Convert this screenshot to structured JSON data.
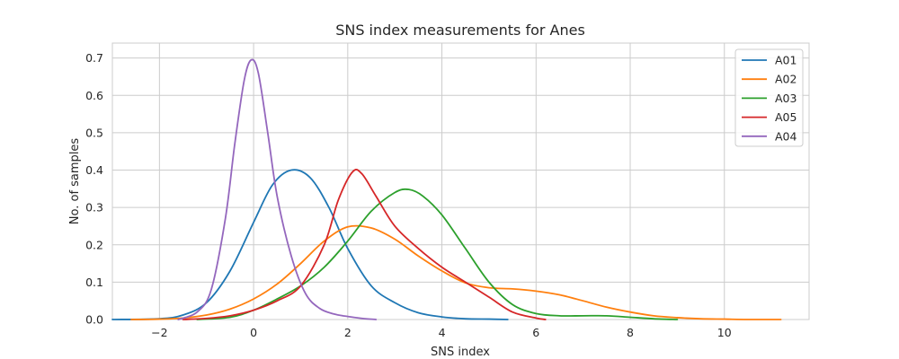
{
  "chart_data": {
    "type": "line",
    "title": "SNS index measurements for Anes",
    "xlabel": "SNS index",
    "ylabel": "No. of samples",
    "xlim": [
      -3.0,
      11.8
    ],
    "ylim": [
      0.0,
      0.74
    ],
    "xticks": [
      -2,
      0,
      2,
      4,
      6,
      8,
      10
    ],
    "xtick_labels": [
      "−2",
      "0",
      "2",
      "4",
      "6",
      "8",
      "10"
    ],
    "yticks": [
      0.0,
      0.1,
      0.2,
      0.3,
      0.4,
      0.5,
      0.6,
      0.7
    ],
    "ytick_labels": [
      "0.0",
      "0.1",
      "0.2",
      "0.3",
      "0.4",
      "0.5",
      "0.6",
      "0.7"
    ],
    "grid": true,
    "legend_position": "top-right",
    "series": [
      {
        "name": "A01",
        "color": "#1f77b4",
        "x": [
          -3.0,
          -2.0,
          -1.5,
          -1.0,
          -0.5,
          0.0,
          0.4,
          0.8,
          1.2,
          1.6,
          2.0,
          2.5,
          3.0,
          3.5,
          4.0,
          4.5,
          5.0,
          5.4
        ],
        "y": [
          0.0,
          0.002,
          0.012,
          0.045,
          0.13,
          0.26,
          0.36,
          0.4,
          0.38,
          0.3,
          0.19,
          0.09,
          0.045,
          0.018,
          0.007,
          0.002,
          0.001,
          0.0
        ]
      },
      {
        "name": "A02",
        "color": "#ff7f0e",
        "x": [
          -2.6,
          -2.0,
          -1.5,
          -1.0,
          -0.5,
          0.0,
          0.5,
          1.0,
          1.5,
          2.0,
          2.5,
          3.0,
          3.5,
          4.0,
          4.5,
          5.0,
          5.5,
          6.0,
          6.5,
          7.0,
          7.5,
          8.0,
          8.5,
          9.0,
          9.5,
          10.0,
          10.5,
          11.2
        ],
        "y": [
          0.0,
          0.001,
          0.004,
          0.012,
          0.028,
          0.055,
          0.095,
          0.15,
          0.21,
          0.248,
          0.245,
          0.215,
          0.17,
          0.13,
          0.098,
          0.085,
          0.082,
          0.076,
          0.066,
          0.05,
          0.033,
          0.02,
          0.01,
          0.005,
          0.002,
          0.001,
          0.0,
          0.0
        ]
      },
      {
        "name": "A03",
        "color": "#2ca02c",
        "x": [
          -1.2,
          -0.5,
          0.0,
          0.5,
          1.0,
          1.5,
          2.0,
          2.5,
          3.0,
          3.3,
          3.6,
          4.0,
          4.5,
          5.0,
          5.5,
          6.0,
          6.5,
          7.0,
          7.5,
          8.0,
          8.5,
          9.0
        ],
        "y": [
          0.0,
          0.006,
          0.025,
          0.055,
          0.09,
          0.14,
          0.21,
          0.29,
          0.34,
          0.348,
          0.33,
          0.28,
          0.19,
          0.1,
          0.04,
          0.016,
          0.01,
          0.01,
          0.01,
          0.006,
          0.002,
          0.0
        ]
      },
      {
        "name": "A05",
        "color": "#d62728",
        "x": [
          -1.5,
          -1.0,
          -0.5,
          0.0,
          0.5,
          1.0,
          1.5,
          1.8,
          2.1,
          2.3,
          2.6,
          3.0,
          3.5,
          4.0,
          4.5,
          5.0,
          5.5,
          6.0,
          6.2
        ],
        "y": [
          0.0,
          0.003,
          0.01,
          0.025,
          0.05,
          0.09,
          0.2,
          0.32,
          0.395,
          0.39,
          0.33,
          0.25,
          0.19,
          0.14,
          0.1,
          0.06,
          0.02,
          0.004,
          0.0
        ]
      },
      {
        "name": "A04",
        "color": "#9467bd",
        "x": [
          -1.6,
          -1.2,
          -0.9,
          -0.6,
          -0.4,
          -0.2,
          -0.05,
          0.1,
          0.3,
          0.5,
          0.8,
          1.1,
          1.4,
          1.7,
          2.0,
          2.3,
          2.6
        ],
        "y": [
          0.0,
          0.02,
          0.08,
          0.27,
          0.47,
          0.64,
          0.695,
          0.66,
          0.5,
          0.33,
          0.17,
          0.07,
          0.03,
          0.015,
          0.008,
          0.003,
          0.0
        ]
      }
    ]
  }
}
